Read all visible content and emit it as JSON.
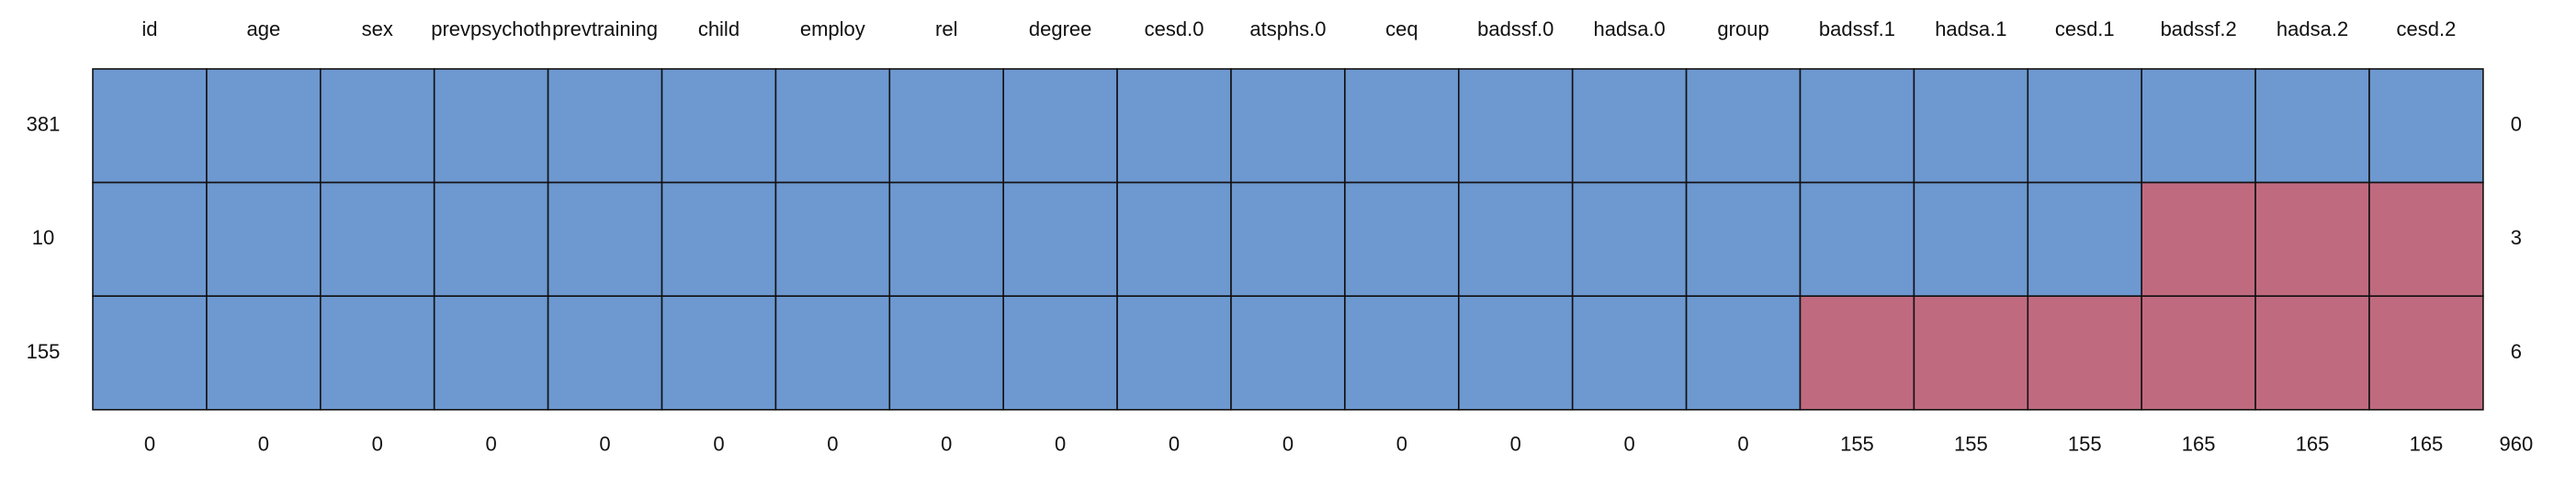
{
  "chart_data": {
    "type": "heatmap",
    "title": "",
    "xlabel": "",
    "ylabel": "",
    "columns": [
      "id",
      "age",
      "sex",
      "prevpsychoth",
      "prevtraining",
      "child",
      "employ",
      "rel",
      "degree",
      "cesd.0",
      "atsphs.0",
      "ceq",
      "badssf.0",
      "hadsa.0",
      "group",
      "badssf.1",
      "hadsa.1",
      "cesd.1",
      "badssf.2",
      "hadsa.2",
      "cesd.2"
    ],
    "rows": [
      {
        "count": "381",
        "missing_total": "0",
        "missing": [
          0,
          0,
          0,
          0,
          0,
          0,
          0,
          0,
          0,
          0,
          0,
          0,
          0,
          0,
          0,
          0,
          0,
          0,
          0,
          0,
          0
        ]
      },
      {
        "count": "10",
        "missing_total": "3",
        "missing": [
          0,
          0,
          0,
          0,
          0,
          0,
          0,
          0,
          0,
          0,
          0,
          0,
          0,
          0,
          0,
          0,
          0,
          0,
          1,
          1,
          1
        ]
      },
      {
        "count": "155",
        "missing_total": "6",
        "missing": [
          0,
          0,
          0,
          0,
          0,
          0,
          0,
          0,
          0,
          0,
          0,
          0,
          0,
          0,
          0,
          1,
          1,
          1,
          1,
          1,
          1
        ]
      }
    ],
    "column_missing_counts": [
      "0",
      "0",
      "0",
      "0",
      "0",
      "0",
      "0",
      "0",
      "0",
      "0",
      "0",
      "0",
      "0",
      "0",
      "0",
      "155",
      "155",
      "155",
      "165",
      "165",
      "165"
    ],
    "total_missing": "960",
    "colors": {
      "observed": "#6d98d0",
      "missing": "#c06a80",
      "border": "#111111"
    }
  }
}
